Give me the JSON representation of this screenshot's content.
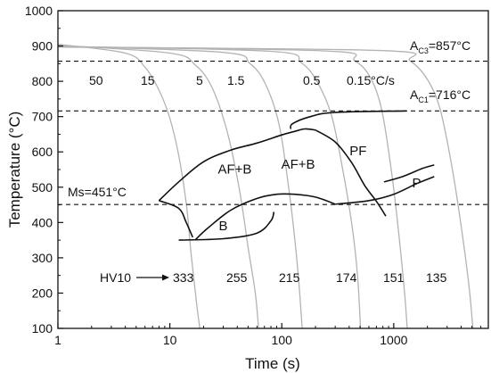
{
  "chart_data": {
    "type": "line",
    "xlabel": "Time (s)",
    "ylabel": "Temperature (°C)",
    "xscale": "log",
    "xlim": [
      1,
      7000
    ],
    "ylim": [
      100,
      1000
    ],
    "x_ticks": [
      1,
      10,
      100,
      1000
    ],
    "x_tick_labels": [
      "1",
      "10",
      "100",
      "1000"
    ],
    "y_ticks": [
      100,
      200,
      300,
      400,
      500,
      600,
      700,
      800,
      900,
      1000
    ],
    "y_tick_labels": [
      "100",
      "200",
      "300",
      "400",
      "500",
      "600",
      "700",
      "800",
      "900",
      "1000"
    ],
    "grid": false,
    "reference_lines": [
      {
        "name": "Ac3",
        "prefix": "A",
        "sub": "C3",
        "suffix": "=857°C",
        "y": 857
      },
      {
        "name": "Ac1",
        "prefix": "A",
        "sub": "C1",
        "suffix": "=716°C",
        "y": 716
      },
      {
        "name": "Ms",
        "label": "Ms=451°C",
        "y": 451
      }
    ],
    "cooling_rates": [
      {
        "label": "50",
        "hv": "333",
        "path": [
          [
            1,
            905
          ],
          [
            4,
            880
          ],
          [
            6,
            840
          ],
          [
            8,
            775
          ],
          [
            10,
            695
          ],
          [
            12,
            590
          ],
          [
            14,
            455
          ],
          [
            15.5,
            310
          ],
          [
            17.5,
            160
          ],
          [
            18.5,
            100
          ]
        ]
      },
      {
        "label": "15",
        "hv": "255",
        "path": [
          [
            1,
            902
          ],
          [
            10,
            880
          ],
          [
            17,
            845
          ],
          [
            24,
            780
          ],
          [
            33,
            650
          ],
          [
            42,
            490
          ],
          [
            50,
            330
          ],
          [
            58,
            200
          ],
          [
            62,
            100
          ]
        ]
      },
      {
        "label": "5",
        "hv": "215",
        "path": [
          [
            1,
            900
          ],
          [
            30,
            882
          ],
          [
            52,
            850
          ],
          [
            72,
            790
          ],
          [
            95,
            675
          ],
          [
            115,
            500
          ],
          [
            130,
            360
          ],
          [
            142,
            230
          ],
          [
            152,
            100
          ]
        ]
      },
      {
        "label": "1.5",
        "hv": "174",
        "path": [
          [
            1,
            899
          ],
          [
            80,
            885
          ],
          [
            150,
            852
          ],
          [
            210,
            795
          ],
          [
            280,
            700
          ],
          [
            350,
            550
          ],
          [
            420,
            400
          ],
          [
            475,
            250
          ],
          [
            505,
            100
          ]
        ]
      },
      {
        "label": "0.5",
        "hv": "151",
        "path": [
          [
            1,
            898
          ],
          [
            250,
            886
          ],
          [
            450,
            858
          ],
          [
            620,
            810
          ],
          [
            780,
            720
          ],
          [
            950,
            550
          ],
          [
            1100,
            380
          ],
          [
            1250,
            200
          ],
          [
            1320,
            100
          ]
        ]
      },
      {
        "label": "0.15°C/s",
        "hv": "135",
        "path": [
          [
            1,
            897
          ],
          [
            800,
            887
          ],
          [
            1400,
            858
          ],
          [
            2000,
            805
          ],
          [
            2600,
            720
          ],
          [
            3300,
            560
          ],
          [
            4000,
            390
          ],
          [
            4700,
            220
          ],
          [
            5100,
            100
          ]
        ]
      }
    ],
    "phase_boundaries": [
      {
        "name": "upper-start",
        "path": [
          [
            8,
            462
          ],
          [
            12,
            515
          ],
          [
            20,
            572
          ],
          [
            35,
            605
          ],
          [
            60,
            625
          ],
          [
            100,
            648
          ],
          [
            130,
            658
          ],
          [
            160,
            665
          ],
          [
            200,
            662
          ]
        ]
      },
      {
        "name": "bainite-start-left",
        "path": [
          [
            8,
            462
          ],
          [
            12,
            440
          ],
          [
            14,
            400
          ],
          [
            16,
            358
          ]
        ]
      },
      {
        "name": "lower-finish",
        "path": [
          [
            12,
            350
          ],
          [
            30,
            354
          ],
          [
            60,
            370
          ],
          [
            80,
            405
          ],
          [
            85,
            430
          ]
        ]
      },
      {
        "name": "b-afb-boundary",
        "path": [
          [
            17,
            352
          ],
          [
            22,
            385
          ],
          [
            35,
            435
          ],
          [
            60,
            468
          ],
          [
            90,
            480
          ],
          [
            130,
            480
          ],
          [
            200,
            472
          ],
          [
            300,
            452
          ]
        ]
      },
      {
        "name": "afb-pf-boundary",
        "path": [
          [
            200,
            662
          ],
          [
            300,
            628
          ],
          [
            420,
            570
          ],
          [
            550,
            505
          ],
          [
            700,
            460
          ],
          [
            850,
            418
          ]
        ]
      },
      {
        "name": "lower-right",
        "path": [
          [
            300,
            452
          ],
          [
            600,
            462
          ],
          [
            1000,
            480
          ],
          [
            1600,
            510
          ],
          [
            2300,
            530
          ]
        ]
      },
      {
        "name": "pf-start",
        "path": [
          [
            120,
            665
          ],
          [
            125,
            680
          ],
          [
            180,
            700
          ],
          [
            300,
            712
          ],
          [
            1300,
            716
          ]
        ]
      },
      {
        "name": "pearlite-upper",
        "path": [
          [
            820,
            515
          ],
          [
            1200,
            530
          ],
          [
            1800,
            553
          ],
          [
            2300,
            563
          ]
        ]
      }
    ],
    "annotations": [
      {
        "name": "pf",
        "label": "PF",
        "x": 480,
        "y": 590
      },
      {
        "name": "afb-left",
        "label": "AF+B",
        "x": 38,
        "y": 538
      },
      {
        "name": "afb-right",
        "label": "AF+B",
        "x": 140,
        "y": 553
      },
      {
        "name": "b",
        "label": "B",
        "x": 30,
        "y": 378
      },
      {
        "name": "p",
        "label": "P",
        "x": 1600,
        "y": 500
      }
    ],
    "hv_title": "HV10"
  }
}
